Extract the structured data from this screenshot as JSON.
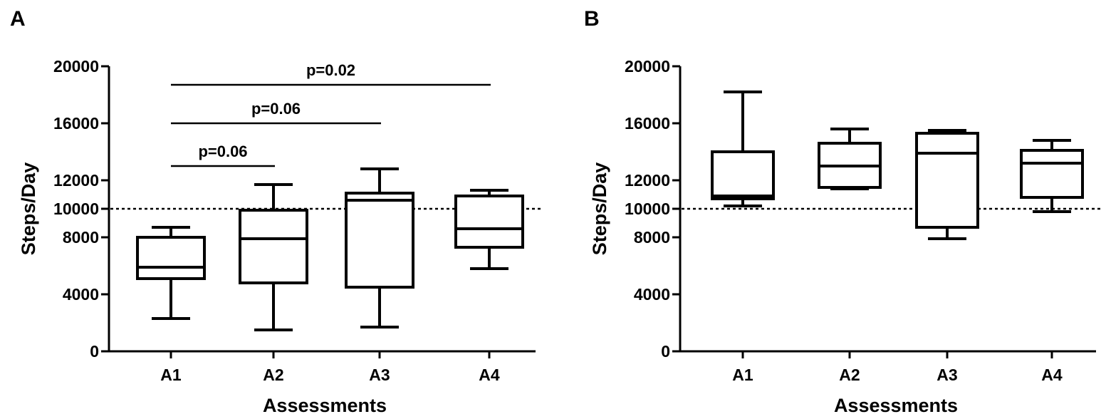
{
  "chart_data": [
    {
      "panel": "A",
      "type": "box",
      "xlabel": "Assessments",
      "ylabel": "Steps/Day",
      "ylim": [
        0,
        20000
      ],
      "yticks": [
        0,
        4000,
        8000,
        10000,
        12000,
        16000,
        20000
      ],
      "categories": [
        "A1",
        "A2",
        "A3",
        "A4"
      ],
      "boxes": [
        {
          "min": 2300,
          "q1": 5100,
          "median": 5900,
          "q3": 8000,
          "max": 8700
        },
        {
          "min": 1500,
          "q1": 4800,
          "median": 7900,
          "q3": 9900,
          "max": 11700
        },
        {
          "min": 1700,
          "q1": 4500,
          "median": 10600,
          "q3": 11100,
          "max": 12800
        },
        {
          "min": 5800,
          "q1": 7300,
          "median": 8600,
          "q3": 10900,
          "max": 11300
        }
      ],
      "reference_line": {
        "y": 10000,
        "style": "dotted"
      },
      "annotations": [
        {
          "text": "p=0.06",
          "from": "A1",
          "to": "A2",
          "y": 13000
        },
        {
          "text": "p=0.06",
          "from": "A1",
          "to": "A3",
          "y": 16000
        },
        {
          "text": "p=0.02",
          "from": "A1",
          "to": "A4",
          "y": 18700
        }
      ]
    },
    {
      "panel": "B",
      "type": "box",
      "xlabel": "Assessments",
      "ylabel": "Steps/Day",
      "ylim": [
        0,
        20000
      ],
      "yticks": [
        0,
        4000,
        8000,
        10000,
        12000,
        16000,
        20000
      ],
      "categories": [
        "A1",
        "A2",
        "A3",
        "A4"
      ],
      "boxes": [
        {
          "min": 10200,
          "q1": 10700,
          "median": 10900,
          "q3": 14000,
          "max": 18200
        },
        {
          "min": 11400,
          "q1": 11500,
          "median": 13000,
          "q3": 14600,
          "max": 15600
        },
        {
          "min": 7900,
          "q1": 8700,
          "median": 13900,
          "q3": 15300,
          "max": 15500
        },
        {
          "min": 9800,
          "q1": 10800,
          "median": 13200,
          "q3": 14100,
          "max": 14800
        }
      ],
      "reference_line": {
        "y": 10000,
        "style": "dotted"
      },
      "annotations": []
    }
  ]
}
